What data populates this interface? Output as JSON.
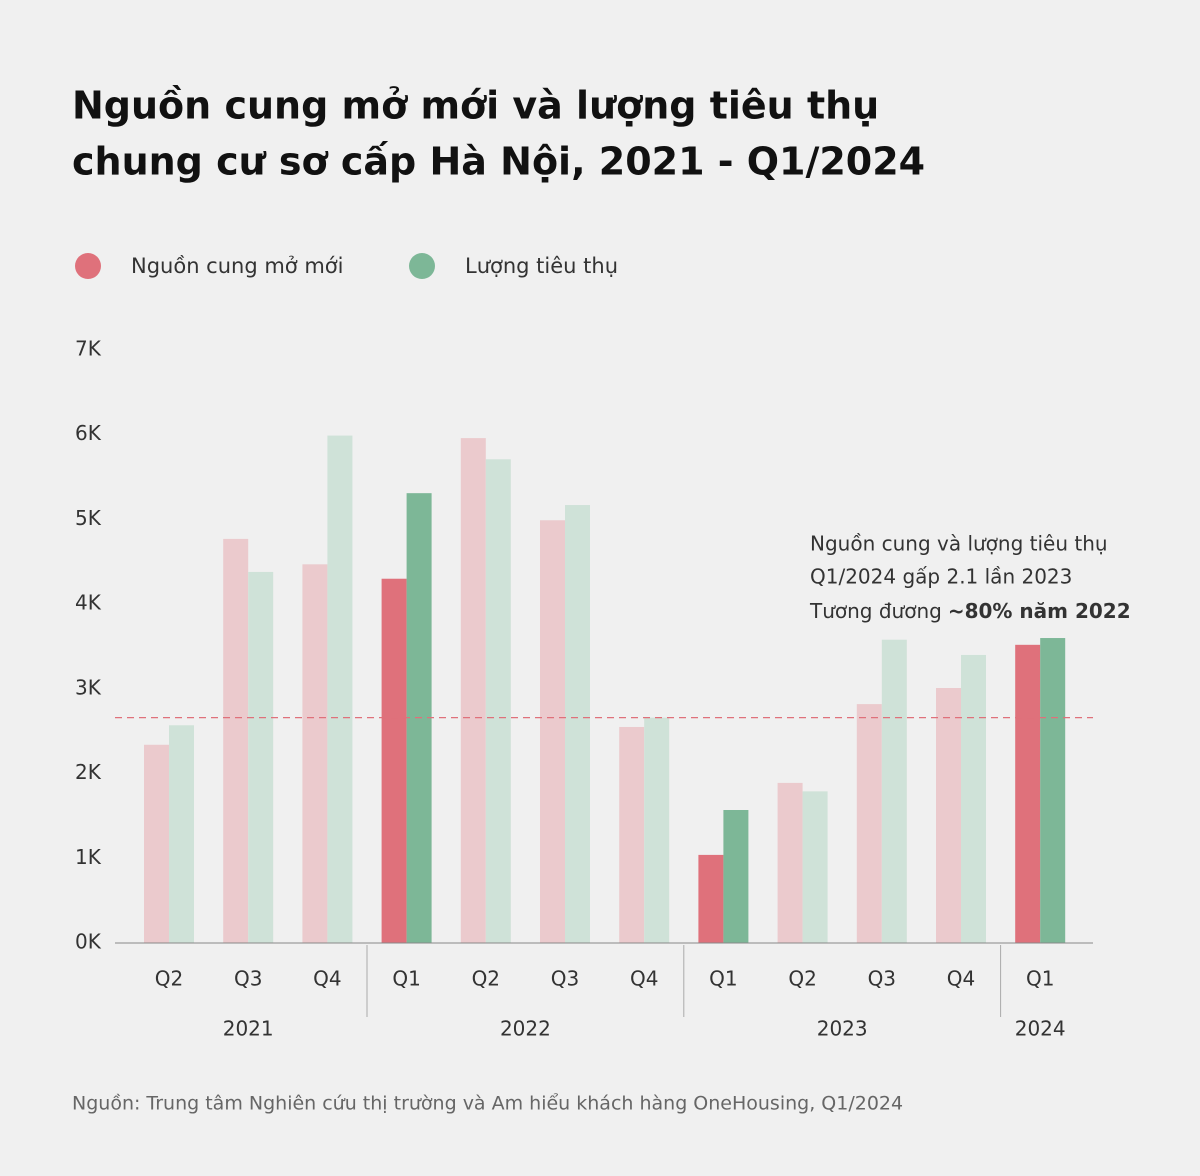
{
  "chart_data": {
    "type": "bar",
    "title": [
      "Nguồn cung mở mới và lượng tiêu thụ",
      "chung cư sơ cấp Hà Nội, 2021 - Q1/2024"
    ],
    "categories": [
      "Q2",
      "Q3",
      "Q4",
      "Q1",
      "Q2",
      "Q3",
      "Q4",
      "Q1",
      "Q2",
      "Q3",
      "Q4",
      "Q1"
    ],
    "groups": [
      {
        "label": "2021",
        "count": 3
      },
      {
        "label": "2022",
        "count": 4
      },
      {
        "label": "2023",
        "count": 4
      },
      {
        "label": "2024",
        "count": 1
      }
    ],
    "series": [
      {
        "name": "Nguồn cung mở mới",
        "color": "#df717b",
        "colors": [
          "#ebcacd",
          "#ebcacd",
          "#ebcacd",
          "#df717b",
          "#ebcacd",
          "#ebcacd",
          "#ebcacd",
          "#df717b",
          "#ebcacd",
          "#ebcacd",
          "#ebcacd",
          "#df717b"
        ],
        "values": [
          2340,
          4770,
          4470,
          4300,
          5960,
          4990,
          2550,
          1040,
          1890,
          2820,
          3010,
          3520
        ]
      },
      {
        "name": "Lượng tiêu thụ",
        "color": "#7db797",
        "colors": [
          "#cfe2d8",
          "#cfe2d8",
          "#cfe2d8",
          "#7db797",
          "#cfe2d8",
          "#cfe2d8",
          "#cfe2d8",
          "#7db797",
          "#cfe2d8",
          "#cfe2d8",
          "#cfe2d8",
          "#7db797"
        ],
        "values": [
          2570,
          4380,
          5990,
          5310,
          5710,
          5170,
          2660,
          1570,
          1790,
          3580,
          3400,
          3600
        ]
      }
    ],
    "ylim": [
      0,
      7000
    ],
    "yticks": [
      {
        "value": 0,
        "label": "0K"
      },
      {
        "value": 1000,
        "label": "1K"
      },
      {
        "value": 2000,
        "label": "2K"
      },
      {
        "value": 3000,
        "label": "3K"
      },
      {
        "value": 4000,
        "label": "4K"
      },
      {
        "value": 5000,
        "label": "5K"
      },
      {
        "value": 6000,
        "label": "6K"
      },
      {
        "value": 7000,
        "label": "7K"
      }
    ],
    "reference_line": {
      "value": 2660,
      "color": "#df717b"
    },
    "annotation": {
      "lines": [
        "Nguồn cung và lượng tiêu thụ",
        "Q1/2024 gấp 2.1 lần 2023"
      ],
      "last": "Tương đương",
      "bold": "~80% năm 2022"
    },
    "source": "Nguồn: Trung tâm Nghiên cứu thị trường và Am hiểu khách hàng OneHousing, Q1/2024"
  }
}
